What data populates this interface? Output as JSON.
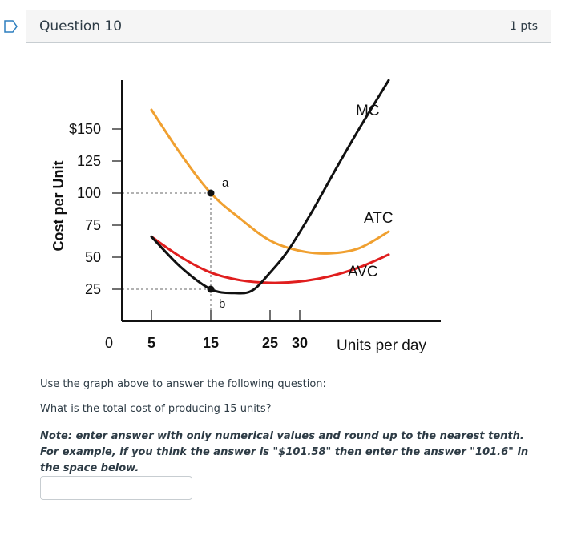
{
  "question": {
    "title": "Question 10",
    "points": "1 pts",
    "instruction": "Use the graph above to answer the following question:",
    "prompt": "What is the total cost of producing 15 units?",
    "note": "Note: enter answer with only numerical values and round up to the nearest tenth. For example, if you think the answer is \"$101.58\" then enter the answer \"101.6\" in the space below.",
    "answer_value": ""
  },
  "colors": {
    "mc": "#111111",
    "atc": "#f0a030",
    "avc": "#e01e1e",
    "flag": "#2d7fbf"
  },
  "chart_data": {
    "type": "line",
    "ylabel": "Cost per Unit",
    "xlabel": "Units per day",
    "ytick_labels": [
      "$150",
      "125",
      "100",
      "75",
      "50",
      "25"
    ],
    "yticks": [
      150,
      125,
      100,
      75,
      50,
      25
    ],
    "xtick_labels": [
      "0",
      "5",
      "15",
      "25",
      "30"
    ],
    "xticks": [
      0,
      5,
      15,
      25,
      30
    ],
    "xlim": [
      0,
      54
    ],
    "ylim": [
      0,
      190
    ],
    "series": [
      {
        "name": "MC",
        "x": [
          5,
          10,
          15,
          19,
          22,
          25,
          28,
          32,
          36,
          40,
          45
        ],
        "y": [
          66,
          42,
          25,
          22,
          24,
          38,
          55,
          85,
          118,
          150,
          188
        ]
      },
      {
        "name": "ATC",
        "x": [
          5,
          10,
          15,
          20,
          25,
          30,
          35,
          40,
          45
        ],
        "y": [
          165,
          130,
          100,
          80,
          63,
          55,
          53,
          57,
          70
        ]
      },
      {
        "name": "AVC",
        "x": [
          5,
          10,
          15,
          20,
          25,
          30,
          35,
          40,
          45
        ],
        "y": [
          66,
          50,
          38,
          32,
          30,
          31,
          35,
          42,
          52
        ]
      }
    ],
    "points": [
      {
        "label": "a",
        "x": 15,
        "y": 100
      },
      {
        "label": "b",
        "x": 15,
        "y": 25
      }
    ]
  }
}
